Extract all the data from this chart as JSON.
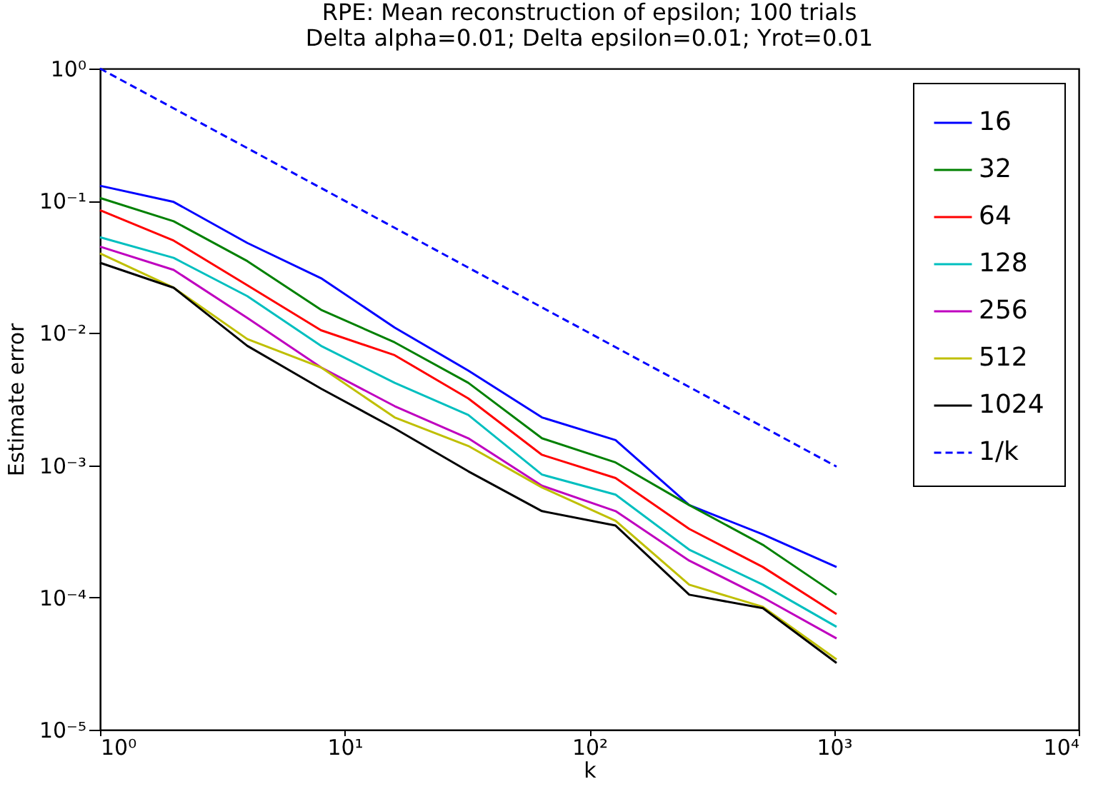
{
  "chart_data": {
    "type": "line",
    "title": "RPE: Mean reconstruction of epsilon; 100 trials",
    "subtitle": "Delta alpha=0.01;     Delta epsilon=0.01;     Yrot=0.01",
    "xlabel": "k",
    "ylabel": "Estimate error",
    "log": "xy",
    "grid": false,
    "legend": "top right",
    "marker": "none",
    "x": [
      1,
      2,
      4,
      8,
      16,
      32,
      64,
      128,
      256,
      512,
      1024
    ],
    "xlim": [
      1,
      10000
    ],
    "xticks": [
      {
        "value": 1,
        "label": "10⁰"
      },
      {
        "value": 10,
        "label": "10¹"
      },
      {
        "value": 100,
        "label": "10²"
      },
      {
        "value": 1000,
        "label": "10³"
      },
      {
        "value": 10000,
        "label": "10⁴"
      }
    ],
    "ylim": [
      1e-05,
      1
    ],
    "yticks": [
      {
        "value": 1e-05,
        "label": "10⁻⁵"
      },
      {
        "value": 0.0001,
        "label": "10⁻⁴"
      },
      {
        "value": 0.001,
        "label": "10⁻³"
      },
      {
        "value": 0.01,
        "label": "10⁻²"
      },
      {
        "value": 0.1,
        "label": "10⁻¹"
      },
      {
        "value": 1,
        "label": "10⁰"
      }
    ],
    "series": [
      {
        "name": "16",
        "color": "#0000ff",
        "line_style": "solid",
        "values": [
          0.13,
          0.098,
          0.048,
          0.026,
          0.011,
          0.0052,
          0.0023,
          0.00155,
          0.0005,
          0.0003,
          0.00017
        ]
      },
      {
        "name": "32",
        "color": "#008000",
        "line_style": "solid",
        "values": [
          0.105,
          0.07,
          0.035,
          0.015,
          0.0085,
          0.0042,
          0.0016,
          0.00105,
          0.0005,
          0.00025,
          0.000105
        ]
      },
      {
        "name": "64",
        "color": "#ff0000",
        "line_style": "solid",
        "values": [
          0.085,
          0.05,
          0.023,
          0.0105,
          0.0068,
          0.0032,
          0.0012,
          0.0008,
          0.00033,
          0.00017,
          7.5e-05
        ]
      },
      {
        "name": "128",
        "color": "#00bfbf",
        "line_style": "solid",
        "values": [
          0.053,
          0.037,
          0.019,
          0.008,
          0.0042,
          0.0024,
          0.00085,
          0.0006,
          0.00023,
          0.000125,
          6e-05
        ]
      },
      {
        "name": "256",
        "color": "#bf00bf",
        "line_style": "solid",
        "values": [
          0.045,
          0.03,
          0.013,
          0.0055,
          0.0028,
          0.0016,
          0.0007,
          0.00045,
          0.00019,
          0.0001,
          4.9e-05
        ]
      },
      {
        "name": "512",
        "color": "#bfbf00",
        "line_style": "solid",
        "values": [
          0.04,
          0.022,
          0.009,
          0.0055,
          0.0023,
          0.0014,
          0.00068,
          0.00038,
          0.000125,
          8.5e-05,
          3.4e-05
        ]
      },
      {
        "name": "1024",
        "color": "#000000",
        "line_style": "solid",
        "values": [
          0.034,
          0.022,
          0.008,
          0.0038,
          0.0019,
          0.0009,
          0.00045,
          0.00035,
          0.000105,
          8.3e-05,
          3.2e-05
        ]
      },
      {
        "name": "1/k",
        "color": "#0000ff",
        "line_style": "dashed",
        "values": [
          1,
          0.5,
          0.25,
          0.125,
          0.0625,
          0.03125,
          0.015625,
          0.0078125,
          0.00390625,
          0.001953125,
          0.0009765625
        ]
      }
    ]
  }
}
